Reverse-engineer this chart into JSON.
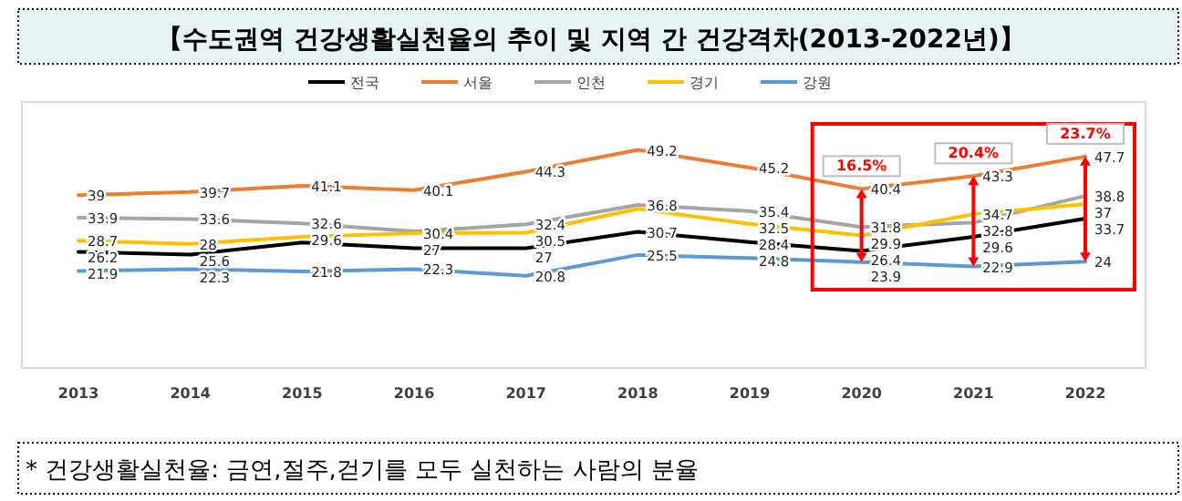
{
  "chart_data": {
    "type": "line",
    "title": "【수도권역 건강생활실천율의 추이 및 지역 간 건강격차(2013-2022년)】",
    "categories": [
      "2013",
      "2014",
      "2015",
      "2016",
      "2017",
      "2018",
      "2019",
      "2020",
      "2021",
      "2022"
    ],
    "series": [
      {
        "name": "전국",
        "color": "#000000",
        "values": [
          26.2,
          25.6,
          28.3,
          27,
          27,
          30.7,
          28.4,
          26.4,
          29.6,
          33.7
        ],
        "value_labels": [
          "26.2",
          "25.6",
          null,
          "27",
          "27",
          "30.7",
          "28.4",
          "26.4",
          "29.6",
          "33.7"
        ]
      },
      {
        "name": "서울",
        "color": "#ed7d31",
        "values": [
          39,
          39.7,
          41.1,
          40.1,
          44.3,
          49.2,
          45.2,
          40.4,
          43.3,
          47.7
        ],
        "value_labels": [
          "39",
          "39.7",
          "41.1",
          "40.1",
          "44.3",
          "49.2",
          "45.2",
          "40.4",
          "43.3",
          "47.7"
        ]
      },
      {
        "name": "인천",
        "color": "#a5a5a5",
        "values": [
          33.9,
          33.6,
          32.6,
          30.8,
          32.4,
          36.8,
          35.4,
          31.8,
          32.8,
          38.8
        ],
        "value_labels": [
          "33.9",
          "33.6",
          "32.6",
          null,
          "32.4",
          "36.8",
          "35.4",
          "31.8",
          "32.8",
          "38.8"
        ]
      },
      {
        "name": "경기",
        "color": "#ffc000",
        "values": [
          28.7,
          28,
          29.6,
          30.4,
          30.5,
          35.9,
          32.5,
          29.9,
          34.7,
          37
        ],
        "value_labels": [
          "28.7",
          "28",
          "29.6",
          "30.4",
          "30.5",
          null,
          "32.5",
          "29.9",
          "34.7",
          "37"
        ]
      },
      {
        "name": "강원",
        "color": "#5b9bd5",
        "values": [
          21.9,
          22.3,
          21.8,
          22.3,
          20.8,
          25.5,
          24.8,
          23.9,
          22.9,
          24
        ],
        "value_labels": [
          "21.9",
          "22.3",
          "21.8",
          "22.3",
          "20.8",
          "25.5",
          "24.8",
          "23.9",
          "22.9",
          "24"
        ]
      }
    ],
    "ylim": [
      0,
      60
    ],
    "tick_labels": "x",
    "legend": "top",
    "marker": "none",
    "line_style": "solid",
    "annotations": [
      {
        "text": "16.5%",
        "x": "2020",
        "y": 40.4
      },
      {
        "text": "20.4%",
        "x": "2021",
        "y": 43.3
      },
      {
        "text": "23.7%",
        "x": "2022",
        "y": 47.7
      },
      "* 건강생활실천율: 금연,절주,걷기를 모두 실천하는 사람의 분율"
    ]
  }
}
